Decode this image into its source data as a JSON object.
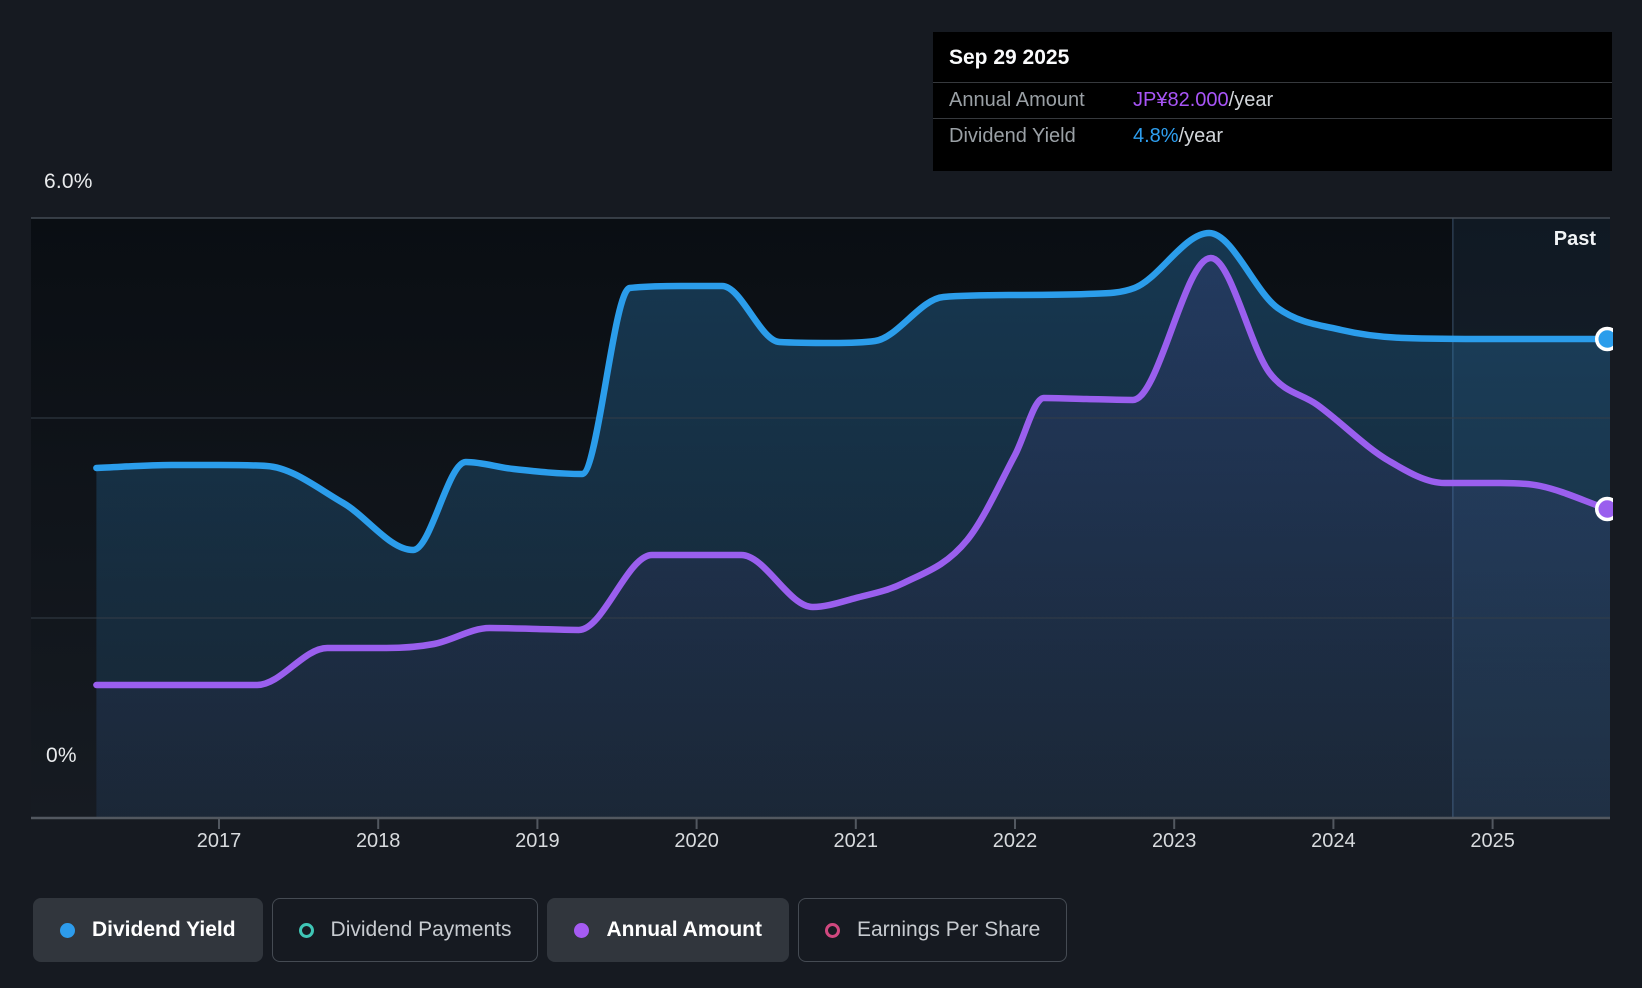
{
  "tooltip": {
    "date": "Sep 29 2025",
    "rows": [
      {
        "label": "Annual Amount",
        "value": "JP¥82.000",
        "suffix": "/year",
        "value_color": "#A855F7"
      },
      {
        "label": "Dividend Yield",
        "value": "4.8%",
        "suffix": "/year",
        "value_color": "#2E9FF0"
      }
    ]
  },
  "axes": {
    "y_top_label": "6.0%",
    "y_bottom_label": "0%",
    "years": [
      "2017",
      "2018",
      "2019",
      "2020",
      "2021",
      "2022",
      "2023",
      "2024",
      "2025"
    ]
  },
  "past_label": "Past",
  "legend": {
    "items": [
      {
        "label": "Dividend Yield",
        "marker": "filled",
        "color": "#2D9CEC",
        "active": true
      },
      {
        "label": "Dividend Payments",
        "marker": "outline",
        "color": "#3FC6B6",
        "active": false
      },
      {
        "label": "Annual Amount",
        "marker": "filled",
        "color": "#A55BF2",
        "active": true
      },
      {
        "label": "Earnings Per Share",
        "marker": "outline",
        "color": "#D0487F",
        "active": false
      }
    ]
  },
  "colors": {
    "background": "#161A21",
    "plot_bg_top": "#0A0E13",
    "plot_bg_bottom": "#161B22",
    "blue_line": "#2B9DEB",
    "purple_line": "#9A5FEE",
    "blue_fill_top": "rgba(45,135,200,0.35)",
    "blue_fill_bottom": "rgba(45,135,200,0.10)",
    "purple_fill_top": "rgba(154,91,239,0.10)",
    "purple_fill_bottom": "rgba(154,91,239,0.02)",
    "grid": "#343D47",
    "grid_top": "#434B54",
    "axis": "#525860",
    "past_fill": "rgba(90,160,230,0.08)",
    "past_line": "rgba(130,180,235,0.25)",
    "marker_stroke": "#FFFFFF",
    "tooltip_bg": "#000000"
  },
  "chart_data": {
    "type": "area",
    "x_unit": "decimal_year",
    "x_ticks": [
      2017,
      2018,
      2019,
      2020,
      2021,
      2022,
      2023,
      2024,
      2025
    ],
    "y_axis": {
      "min": 0,
      "max": 6,
      "unit": "%",
      "gridlines_pct": [
        2,
        4
      ],
      "top_gridline_pct": 6
    },
    "past_region_start": 2024.75,
    "series": [
      {
        "name": "Dividend Yield",
        "color": "#2B9DEB",
        "end_value_label": "4.8%/year",
        "points": [
          [
            2016.23,
            3.5
          ],
          [
            2016.7,
            3.53
          ],
          [
            2017.0,
            3.53
          ],
          [
            2017.3,
            3.52
          ],
          [
            2017.78,
            3.15
          ],
          [
            2018.22,
            2.68
          ],
          [
            2018.55,
            3.56
          ],
          [
            2018.85,
            3.49
          ],
          [
            2019.28,
            3.44
          ],
          [
            2019.58,
            5.3
          ],
          [
            2019.9,
            5.32
          ],
          [
            2020.16,
            5.32
          ],
          [
            2020.52,
            4.76
          ],
          [
            2020.85,
            4.75
          ],
          [
            2021.12,
            4.77
          ],
          [
            2021.55,
            5.21
          ],
          [
            2022.0,
            5.23
          ],
          [
            2022.45,
            5.24
          ],
          [
            2022.75,
            5.3
          ],
          [
            2023.22,
            5.85
          ],
          [
            2023.65,
            5.1
          ],
          [
            2024.05,
            4.88
          ],
          [
            2024.45,
            4.8
          ],
          [
            2025.0,
            4.79
          ],
          [
            2025.72,
            4.79
          ]
        ]
      },
      {
        "name": "Annual Amount",
        "color": "#9A5FEE",
        "end_value_label": "JP¥82.000/year",
        "points": [
          [
            2016.23,
            1.33
          ],
          [
            2016.8,
            1.33
          ],
          [
            2017.24,
            1.33
          ],
          [
            2017.68,
            1.7
          ],
          [
            2018.05,
            1.7
          ],
          [
            2018.35,
            1.74
          ],
          [
            2018.7,
            1.9
          ],
          [
            2019.0,
            1.89
          ],
          [
            2019.26,
            1.88
          ],
          [
            2019.72,
            2.63
          ],
          [
            2020.0,
            2.63
          ],
          [
            2020.28,
            2.63
          ],
          [
            2020.73,
            2.11
          ],
          [
            2021.0,
            2.2
          ],
          [
            2021.3,
            2.35
          ],
          [
            2021.7,
            2.78
          ],
          [
            2022.0,
            3.63
          ],
          [
            2022.18,
            4.2
          ],
          [
            2022.45,
            4.19
          ],
          [
            2022.74,
            4.18
          ],
          [
            2023.23,
            5.6
          ],
          [
            2023.6,
            4.45
          ],
          [
            2023.9,
            4.13
          ],
          [
            2024.35,
            3.57
          ],
          [
            2024.7,
            3.35
          ],
          [
            2025.05,
            3.35
          ],
          [
            2025.3,
            3.32
          ],
          [
            2025.72,
            3.09
          ]
        ]
      }
    ]
  }
}
